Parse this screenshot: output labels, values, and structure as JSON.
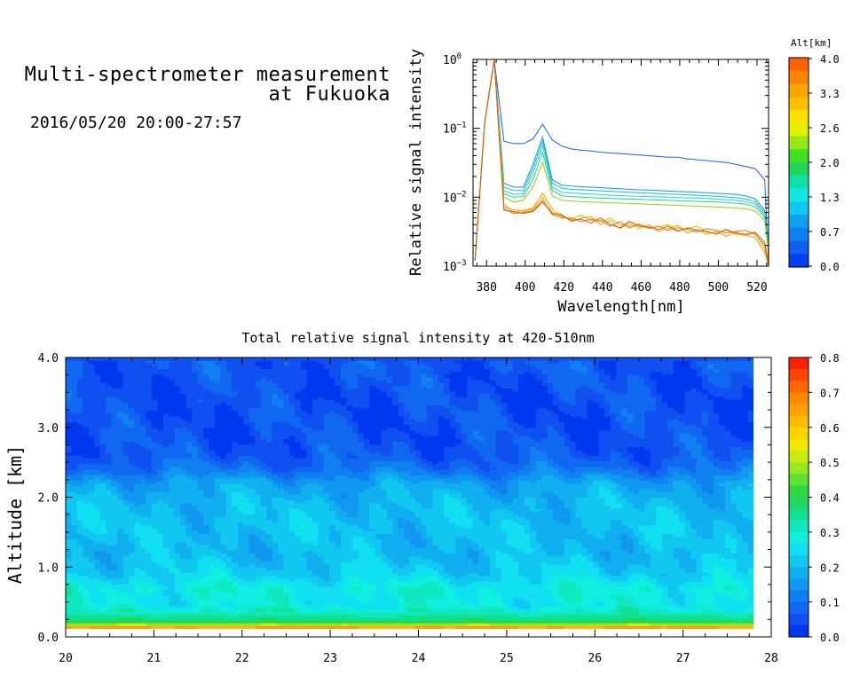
{
  "header": {
    "title_line1": "Multi-spectrometer measurement",
    "title_line2": "at Fukuoka",
    "datetime": "2016/05/20 20:00-27:57"
  },
  "chart_data": [
    {
      "type": "line",
      "xlabel": "Wavelength[nm]",
      "ylabel": "Relative signal intensity",
      "xlim": [
        373,
        526
      ],
      "ylim": [
        0.001,
        1
      ],
      "yscale": "log",
      "x_ticks": [
        "380",
        "400",
        "420",
        "440",
        "460",
        "480",
        "500",
        "520"
      ],
      "y_ticks": [
        {
          "base": "10",
          "exp": "0"
        },
        {
          "base": "10",
          "exp": "−1"
        },
        {
          "base": "10",
          "exp": "−2"
        },
        {
          "base": "10",
          "exp": "−3"
        }
      ],
      "x": [
        374,
        379,
        384,
        389,
        394,
        399,
        404,
        409,
        414,
        419,
        424,
        429,
        434,
        439,
        444,
        449,
        454,
        459,
        464,
        469,
        474,
        479,
        484,
        489,
        494,
        499,
        504,
        509,
        514,
        519,
        524,
        526
      ],
      "series": [
        {
          "color": "#1a60e8",
          "values": [
            0.0012,
            0.12,
            1.0,
            0.065,
            0.06,
            0.06,
            0.07,
            0.115,
            0.068,
            0.055,
            0.05,
            0.048,
            0.047,
            0.045,
            0.044,
            0.043,
            0.042,
            0.041,
            0.04,
            0.039,
            0.038,
            0.038,
            0.036,
            0.035,
            0.034,
            0.033,
            0.032,
            0.03,
            0.028,
            0.026,
            0.018,
            0.0012
          ]
        },
        {
          "color": "#1a8fe8",
          "values": [
            0.0012,
            0.12,
            1.0,
            0.016,
            0.014,
            0.014,
            0.03,
            0.075,
            0.018,
            0.015,
            0.0145,
            0.0142,
            0.014,
            0.0138,
            0.0135,
            0.0133,
            0.013,
            0.0128,
            0.0127,
            0.0125,
            0.0123,
            0.0121,
            0.012,
            0.0118,
            0.0116,
            0.0114,
            0.0112,
            0.011,
            0.0105,
            0.0095,
            0.0065,
            0.002
          ]
        },
        {
          "color": "#19b4e0",
          "values": [
            0.0012,
            0.12,
            1.0,
            0.014,
            0.0125,
            0.0125,
            0.026,
            0.065,
            0.016,
            0.0135,
            0.013,
            0.0128,
            0.0126,
            0.0124,
            0.0122,
            0.012,
            0.0118,
            0.0116,
            0.0115,
            0.0113,
            0.0111,
            0.011,
            0.0108,
            0.0107,
            0.0105,
            0.0103,
            0.0101,
            0.0098,
            0.0094,
            0.0086,
            0.006,
            0.0019
          ]
        },
        {
          "color": "#1ed8c8",
          "values": [
            0.0012,
            0.12,
            1.0,
            0.0125,
            0.011,
            0.0112,
            0.022,
            0.056,
            0.014,
            0.0118,
            0.0115,
            0.0113,
            0.0111,
            0.0109,
            0.0107,
            0.0106,
            0.0104,
            0.0103,
            0.0102,
            0.0101,
            0.01,
            0.0099,
            0.0098,
            0.0097,
            0.0096,
            0.0094,
            0.0092,
            0.009,
            0.0086,
            0.008,
            0.0056,
            0.0018
          ]
        },
        {
          "color": "#22d088",
          "values": [
            0.0012,
            0.12,
            1.0,
            0.0112,
            0.01,
            0.0102,
            0.018,
            0.045,
            0.0125,
            0.0105,
            0.0102,
            0.01,
            0.0099,
            0.0097,
            0.0096,
            0.0095,
            0.0094,
            0.0093,
            0.0092,
            0.0091,
            0.009,
            0.0089,
            0.0088,
            0.0087,
            0.0086,
            0.0085,
            0.0084,
            0.0082,
            0.0079,
            0.0073,
            0.0052,
            0.0017
          ]
        },
        {
          "color": "#8ad020",
          "values": [
            0.0012,
            0.12,
            1.0,
            0.01,
            0.0085,
            0.009,
            0.014,
            0.032,
            0.0105,
            0.009,
            0.0088,
            0.0086,
            0.0085,
            0.0084,
            0.0083,
            0.0082,
            0.0081,
            0.008,
            0.0079,
            0.0078,
            0.0077,
            0.0076,
            0.0075,
            0.0074,
            0.0073,
            0.0072,
            0.0071,
            0.007,
            0.0068,
            0.0063,
            0.0046,
            0.0016
          ]
        },
        {
          "color": "#e8b800",
          "values": [
            0.0012,
            0.12,
            1.0,
            0.008,
            0.006,
            0.0065,
            0.007,
            0.0115,
            0.0068,
            0.0052,
            0.0048,
            0.0055,
            0.0046,
            0.0044,
            0.005,
            0.004,
            0.0038,
            0.0041,
            0.0036,
            0.0037,
            0.004,
            0.0033,
            0.0035,
            0.0038,
            0.0031,
            0.003,
            0.0033,
            0.0029,
            0.0028,
            0.003,
            0.0018,
            0.001
          ]
        },
        {
          "color": "#f0a000",
          "values": [
            0.0012,
            0.12,
            1.0,
            0.0072,
            0.0066,
            0.0062,
            0.0068,
            0.01,
            0.006,
            0.0056,
            0.0044,
            0.005,
            0.0052,
            0.004,
            0.0046,
            0.0035,
            0.0042,
            0.0035,
            0.004,
            0.0032,
            0.0035,
            0.0039,
            0.003,
            0.0034,
            0.0029,
            0.0032,
            0.0027,
            0.0031,
            0.0028,
            0.0026,
            0.0016,
            0.001
          ]
        },
        {
          "color": "#e87820",
          "values": [
            0.0012,
            0.12,
            1.0,
            0.0068,
            0.0058,
            0.006,
            0.0064,
            0.009,
            0.0056,
            0.005,
            0.005,
            0.0044,
            0.0048,
            0.0046,
            0.0038,
            0.0044,
            0.0036,
            0.004,
            0.0035,
            0.0038,
            0.0033,
            0.0036,
            0.0034,
            0.0031,
            0.0035,
            0.0033,
            0.003,
            0.0032,
            0.0033,
            0.0029,
            0.002,
            0.0011
          ]
        },
        {
          "color": "#c86010",
          "values": [
            0.0012,
            0.12,
            1.0,
            0.0065,
            0.0062,
            0.0058,
            0.0062,
            0.0085,
            0.0058,
            0.0054,
            0.0046,
            0.0048,
            0.0042,
            0.005,
            0.004,
            0.0036,
            0.0045,
            0.0038,
            0.0037,
            0.0034,
            0.0038,
            0.0032,
            0.0036,
            0.0033,
            0.0032,
            0.0029,
            0.0034,
            0.003,
            0.0029,
            0.0031,
            0.0022,
            0.0011
          ]
        }
      ]
    },
    {
      "type": "heatmap",
      "title": "Total relative signal intensity at 420-510nm",
      "ylabel": "Altitude [km]",
      "xlim": [
        20,
        28
      ],
      "ylim": [
        0,
        4
      ],
      "data_x_range": [
        20,
        27.8
      ],
      "x_ticks": [
        "20",
        "21",
        "22",
        "23",
        "24",
        "25",
        "26",
        "27",
        "28"
      ],
      "y_ticks": [
        "0.0",
        "1.0",
        "2.0",
        "3.0",
        "4.0"
      ],
      "altitude_profile": [
        {
          "alt": 0.12,
          "value": 0.72
        },
        {
          "alt": 0.16,
          "value": 0.55
        },
        {
          "alt": 0.22,
          "value": 0.38
        },
        {
          "alt": 0.3,
          "value": 0.34
        },
        {
          "alt": 0.45,
          "value": 0.27
        },
        {
          "alt": 0.7,
          "value": 0.28
        },
        {
          "alt": 0.9,
          "value": 0.23
        },
        {
          "alt": 1.2,
          "value": 0.2
        },
        {
          "alt": 1.6,
          "value": 0.21
        },
        {
          "alt": 1.9,
          "value": 0.2
        },
        {
          "alt": 2.2,
          "value": 0.17
        },
        {
          "alt": 2.4,
          "value": 0.1
        },
        {
          "alt": 2.6,
          "value": 0.06
        },
        {
          "alt": 3.0,
          "value": 0.05
        },
        {
          "alt": 3.5,
          "value": 0.05
        },
        {
          "alt": 3.97,
          "value": 0.06
        },
        {
          "alt": 4.0,
          "value": 0.02
        }
      ]
    }
  ],
  "legends": {
    "top": {
      "title": "Alt[km]",
      "labels": [
        "4.0",
        "3.3",
        "2.6",
        "2.0",
        "1.3",
        "0.7",
        "0.0"
      ],
      "colors": [
        "#ff6000",
        "#ff8400",
        "#ffa300",
        "#ffc000",
        "#ffe000",
        "#e0f000",
        "#98e818",
        "#40e020",
        "#20d858",
        "#10e0a8",
        "#10e8e0",
        "#10c8f0",
        "#10a0f0",
        "#1080f0",
        "#1060f0",
        "#0040f0"
      ]
    },
    "bottom": {
      "labels": [
        "0.8",
        "0.7",
        "0.6",
        "0.5",
        "0.4",
        "0.3",
        "0.2",
        "0.1",
        "0.0"
      ],
      "colors": [
        "#ff2000",
        "#ff4400",
        "#ff6600",
        "#ff8800",
        "#ffa000",
        "#ffbb00",
        "#ffd500",
        "#f0e800",
        "#c8ec10",
        "#98e820",
        "#60e030",
        "#30d840",
        "#20d860",
        "#10e090",
        "#10e8c0",
        "#10eee0",
        "#10e0f0",
        "#10c8f0",
        "#10b0f0",
        "#1098f0",
        "#1080f0",
        "#1068f0",
        "#1050f0",
        "#0038f0"
      ]
    }
  }
}
